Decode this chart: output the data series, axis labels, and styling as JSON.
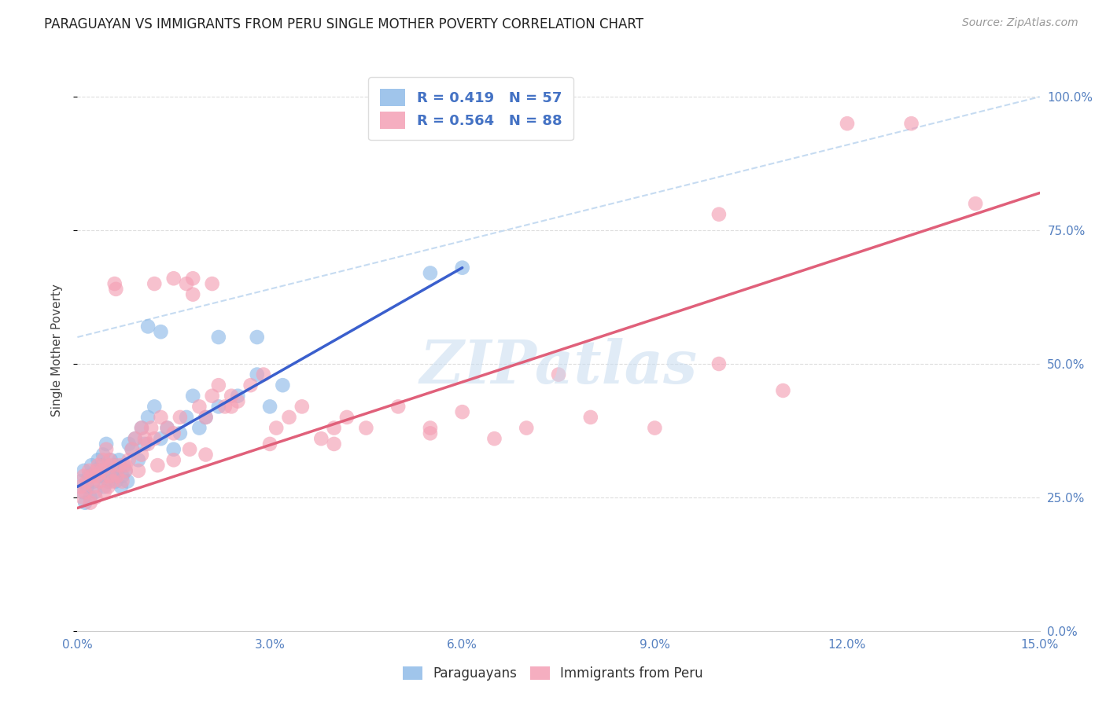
{
  "title": "PARAGUAYAN VS IMMIGRANTS FROM PERU SINGLE MOTHER POVERTY CORRELATION CHART",
  "source": "Source: ZipAtlas.com",
  "xmin": 0.0,
  "xmax": 15.0,
  "ymin": 0.0,
  "ymax": 100.0,
  "ylabel": "Single Mother Poverty",
  "legend_labels": [
    "Paraguayans",
    "Immigrants from Peru"
  ],
  "R_blue": 0.419,
  "N_blue": 57,
  "R_pink": 0.564,
  "N_pink": 88,
  "color_blue": "#8FBBE8",
  "color_pink": "#F4A0B5",
  "color_blue_line": "#3A5FCD",
  "color_pink_line": "#E0607A",
  "color_diag": "#C0D8F0",
  "watermark_text": "ZIPatlas",
  "blue_x": [
    0.05,
    0.08,
    0.1,
    0.12,
    0.15,
    0.18,
    0.2,
    0.22,
    0.25,
    0.28,
    0.3,
    0.32,
    0.35,
    0.38,
    0.4,
    0.42,
    0.45,
    0.48,
    0.5,
    0.52,
    0.55,
    0.58,
    0.6,
    0.62,
    0.65,
    0.68,
    0.7,
    0.72,
    0.75,
    0.78,
    0.8,
    0.85,
    0.9,
    0.95,
    1.0,
    1.05,
    1.1,
    1.2,
    1.3,
    1.4,
    1.5,
    1.6,
    1.7,
    1.8,
    1.9,
    2.0,
    2.2,
    2.5,
    2.8,
    3.0,
    3.2,
    5.5,
    6.0,
    1.1,
    1.3,
    2.2,
    2.8
  ],
  "blue_y": [
    28.0,
    26.0,
    30.0,
    24.0,
    27.0,
    29.0,
    25.0,
    31.0,
    28.0,
    26.0,
    30.0,
    32.0,
    29.0,
    31.0,
    33.0,
    27.0,
    35.0,
    28.0,
    30.0,
    32.0,
    29.0,
    31.0,
    28.0,
    30.0,
    32.0,
    27.0,
    29.0,
    31.0,
    30.0,
    28.0,
    35.0,
    34.0,
    36.0,
    32.0,
    38.0,
    35.0,
    40.0,
    42.0,
    36.0,
    38.0,
    34.0,
    37.0,
    40.0,
    44.0,
    38.0,
    40.0,
    42.0,
    44.0,
    48.0,
    42.0,
    46.0,
    67.0,
    68.0,
    57.0,
    56.0,
    55.0,
    55.0
  ],
  "pink_x": [
    0.05,
    0.08,
    0.1,
    0.12,
    0.15,
    0.18,
    0.2,
    0.22,
    0.25,
    0.28,
    0.3,
    0.32,
    0.35,
    0.38,
    0.4,
    0.42,
    0.45,
    0.48,
    0.5,
    0.52,
    0.55,
    0.58,
    0.6,
    0.62,
    0.65,
    0.7,
    0.75,
    0.8,
    0.85,
    0.9,
    0.95,
    1.0,
    1.05,
    1.1,
    1.15,
    1.2,
    1.3,
    1.4,
    1.5,
    1.6,
    1.7,
    1.8,
    1.9,
    2.0,
    2.1,
    2.2,
    2.3,
    2.4,
    2.5,
    2.7,
    2.9,
    3.1,
    3.3,
    3.5,
    3.8,
    4.0,
    4.2,
    4.5,
    5.0,
    5.5,
    6.0,
    6.5,
    7.0,
    8.0,
    9.0,
    10.0,
    11.0,
    12.0,
    13.0,
    14.0,
    1.2,
    1.5,
    1.8,
    2.1,
    2.4,
    3.0,
    4.0,
    5.5,
    7.5,
    10.0,
    0.3,
    0.5,
    0.75,
    1.0,
    1.25,
    1.5,
    1.75,
    2.0
  ],
  "pink_y": [
    27.0,
    25.0,
    29.0,
    26.0,
    28.0,
    30.0,
    24.0,
    29.0,
    27.0,
    25.0,
    29.0,
    31.0,
    28.0,
    30.0,
    32.0,
    26.0,
    34.0,
    27.0,
    29.0,
    31.0,
    28.0,
    65.0,
    64.0,
    29.0,
    31.0,
    28.0,
    30.0,
    32.0,
    34.0,
    36.0,
    30.0,
    38.0,
    36.0,
    35.0,
    38.0,
    36.0,
    40.0,
    38.0,
    37.0,
    40.0,
    65.0,
    66.0,
    42.0,
    40.0,
    44.0,
    46.0,
    42.0,
    44.0,
    43.0,
    46.0,
    48.0,
    38.0,
    40.0,
    42.0,
    36.0,
    38.0,
    40.0,
    38.0,
    42.0,
    37.0,
    41.0,
    36.0,
    38.0,
    40.0,
    38.0,
    50.0,
    45.0,
    95.0,
    95.0,
    80.0,
    65.0,
    66.0,
    63.0,
    65.0,
    42.0,
    35.0,
    35.0,
    38.0,
    48.0,
    78.0,
    30.0,
    32.0,
    31.0,
    33.0,
    31.0,
    32.0,
    34.0,
    33.0
  ]
}
